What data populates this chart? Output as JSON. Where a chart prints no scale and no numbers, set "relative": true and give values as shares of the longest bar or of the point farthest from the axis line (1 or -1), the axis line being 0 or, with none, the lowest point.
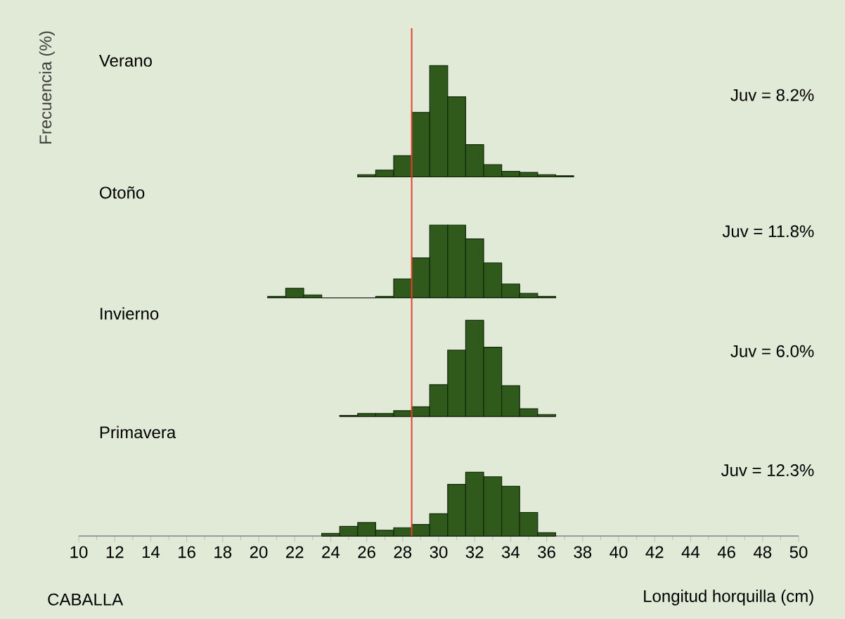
{
  "chart_data": [
    {
      "type": "bar",
      "title": "Verano",
      "ylabel": "Frecuencia (%)",
      "relative": true,
      "color": "#2f5a1c",
      "xlim": [
        10,
        50
      ],
      "tick_labels": false,
      "x": [
        26,
        27,
        28,
        29,
        30,
        31,
        32,
        33,
        34,
        35,
        36,
        37
      ],
      "values": [
        0.02,
        0.06,
        0.19,
        0.58,
        1,
        0.72,
        0.29,
        0.11,
        0.05,
        0.04,
        0.02,
        0.01
      ],
      "ref_lines": [
        {
          "axis": "x",
          "value": 28.5,
          "color": "#e8402a"
        }
      ],
      "annotations": [
        "Juv = 8.2%"
      ]
    },
    {
      "type": "bar",
      "title": "Otoño",
      "relative": true,
      "color": "#2f5a1c",
      "xlim": [
        10,
        50
      ],
      "tick_labels": false,
      "x": [
        21,
        22,
        23,
        27,
        28,
        29,
        30,
        31,
        32,
        33,
        34,
        35,
        36
      ],
      "values": [
        0.02,
        0.13,
        0.04,
        0.02,
        0.26,
        0.55,
        1,
        1,
        0.81,
        0.48,
        0.19,
        0.06,
        0.02
      ],
      "ref_lines": [
        {
          "axis": "x",
          "value": 28.5,
          "color": "#e8402a"
        }
      ],
      "annotations": [
        "Juv = 11.8%"
      ]
    },
    {
      "type": "bar",
      "title": "Invierno",
      "relative": true,
      "color": "#2f5a1c",
      "xlim": [
        10,
        50
      ],
      "tick_labels": false,
      "x": [
        25,
        26,
        27,
        28,
        29,
        30,
        31,
        32,
        33,
        34,
        35,
        36
      ],
      "values": [
        0.01,
        0.03,
        0.03,
        0.06,
        0.1,
        0.33,
        0.69,
        1,
        0.72,
        0.32,
        0.08,
        0.02
      ],
      "ref_lines": [
        {
          "axis": "x",
          "value": 28.5,
          "color": "#e8402a"
        }
      ],
      "annotations": [
        "Juv = 6.0%"
      ]
    },
    {
      "type": "bar",
      "title": "Primavera",
      "xlabel": "Longitud horquilla (cm)",
      "relative": true,
      "color": "#2f5a1c",
      "xlim": [
        10,
        50
      ],
      "tick_labels": "x",
      "xticks": [
        10,
        12,
        14,
        16,
        18,
        20,
        22,
        24,
        26,
        28,
        30,
        32,
        34,
        36,
        38,
        40,
        42,
        44,
        46,
        48,
        50
      ],
      "x": [
        24,
        25,
        26,
        27,
        28,
        29,
        30,
        31,
        32,
        33,
        34,
        35,
        36
      ],
      "values": [
        0.04,
        0.15,
        0.21,
        0.09,
        0.13,
        0.18,
        0.35,
        0.81,
        1,
        0.93,
        0.78,
        0.37,
        0.05
      ],
      "ref_lines": [
        {
          "axis": "x",
          "value": 28.5,
          "color": "#e8402a"
        }
      ],
      "annotations": [
        "Juv = 12.3%",
        "CABALLA"
      ]
    }
  ]
}
